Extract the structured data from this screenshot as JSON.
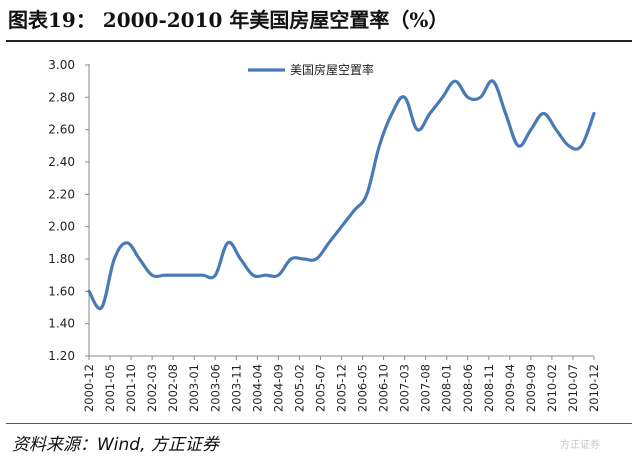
{
  "page": {
    "title": "图表19： 2000-2010 年美国房屋空置率（%）",
    "source": "资料来源：Wind, 方正证券"
  },
  "chart_data": {
    "type": "line",
    "title": "",
    "xlabel": "",
    "ylabel": "",
    "ylim": [
      1.2,
      3.0
    ],
    "yticks": [
      "1.20",
      "1.40",
      "1.60",
      "1.80",
      "2.00",
      "2.20",
      "2.40",
      "2.60",
      "2.80",
      "3.00"
    ],
    "x_tick_labels": [
      "2000-12",
      "2001-05",
      "2001-10",
      "2002-03",
      "2002-08",
      "2003-01",
      "2003-06",
      "2003-11",
      "2004-04",
      "2004-09",
      "2005-02",
      "2005-07",
      "2005-12",
      "2006-05",
      "2006-10",
      "2007-03",
      "2007-08",
      "2008-01",
      "2008-06",
      "2008-11",
      "2009-04",
      "2009-09",
      "2010-02",
      "2010-07",
      "2010-12"
    ],
    "grid": false,
    "legend_position": "top-center",
    "line_color": "#4a7ab5",
    "series": [
      {
        "name": "美国房屋空置率",
        "points": [
          [
            "2000-12",
            1.6
          ],
          [
            "2001-03",
            1.5
          ],
          [
            "2001-06",
            1.8
          ],
          [
            "2001-09",
            1.9
          ],
          [
            "2001-12",
            1.8
          ],
          [
            "2002-03",
            1.7
          ],
          [
            "2002-06",
            1.7
          ],
          [
            "2002-09",
            1.7
          ],
          [
            "2002-12",
            1.7
          ],
          [
            "2003-03",
            1.7
          ],
          [
            "2003-06",
            1.7
          ],
          [
            "2003-09",
            1.9
          ],
          [
            "2003-12",
            1.8
          ],
          [
            "2004-03",
            1.7
          ],
          [
            "2004-06",
            1.7
          ],
          [
            "2004-09",
            1.7
          ],
          [
            "2004-12",
            1.8
          ],
          [
            "2005-03",
            1.8
          ],
          [
            "2005-06",
            1.8
          ],
          [
            "2005-09",
            1.9
          ],
          [
            "2005-12",
            2.0
          ],
          [
            "2006-03",
            2.1
          ],
          [
            "2006-06",
            2.2
          ],
          [
            "2006-09",
            2.5
          ],
          [
            "2006-12",
            2.7
          ],
          [
            "2007-03",
            2.8
          ],
          [
            "2007-06",
            2.6
          ],
          [
            "2007-09",
            2.7
          ],
          [
            "2007-12",
            2.8
          ],
          [
            "2008-03",
            2.9
          ],
          [
            "2008-06",
            2.8
          ],
          [
            "2008-09",
            2.8
          ],
          [
            "2008-12",
            2.9
          ],
          [
            "2009-03",
            2.7
          ],
          [
            "2009-06",
            2.5
          ],
          [
            "2009-09",
            2.6
          ],
          [
            "2009-12",
            2.7
          ],
          [
            "2010-03",
            2.6
          ],
          [
            "2010-06",
            2.5
          ],
          [
            "2010-09",
            2.5
          ],
          [
            "2010-12",
            2.7
          ]
        ]
      }
    ]
  },
  "watermark": "方正证券"
}
